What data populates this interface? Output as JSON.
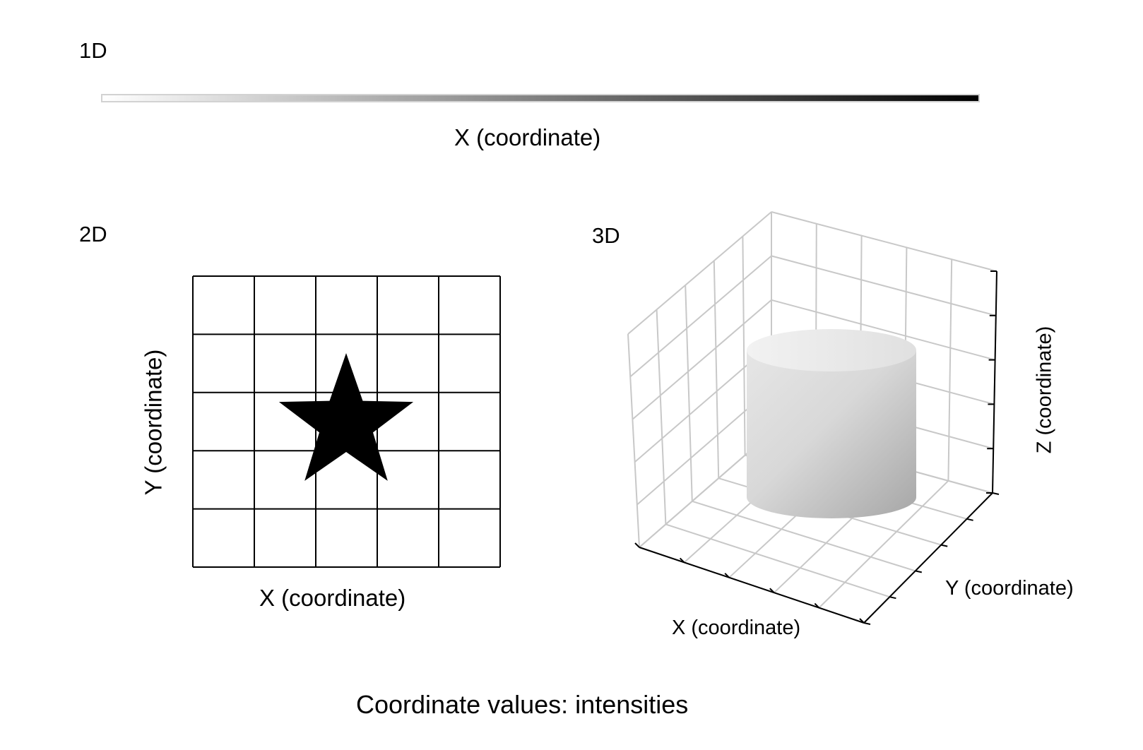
{
  "panels": {
    "one_d": {
      "label": "1D",
      "x_axis_label": "X (coordinate)",
      "intensity_gradient": {
        "start_color": "#ffffff",
        "end_color": "#000000"
      }
    },
    "two_d": {
      "label": "2D",
      "x_axis_label": "X (coordinate)",
      "y_axis_label": "Y (coordinate)",
      "grid": {
        "rows": 5,
        "cols": 5
      },
      "shape": "star",
      "shape_color": "#000000"
    },
    "three_d": {
      "label": "3D",
      "x_axis_label": "X (coordinate)",
      "y_axis_label": "Y (coordinate)",
      "z_axis_label": "Z (coordinate)",
      "shape": "cylinder",
      "shape_color": "#c8c8c8"
    }
  },
  "caption": "Coordinate values: intensities"
}
